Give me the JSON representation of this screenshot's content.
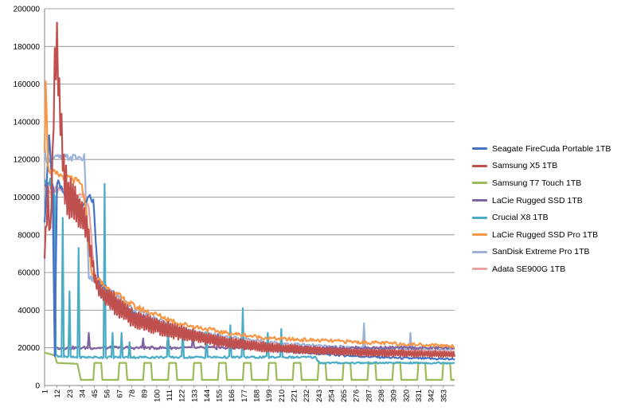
{
  "chart_data": {
    "type": "line",
    "title": "",
    "xlabel": "",
    "ylabel": "",
    "ylim": [
      0,
      200000
    ],
    "y_ticks": [
      "0",
      "20000",
      "40000",
      "60000",
      "80000",
      "100000",
      "120000",
      "140000",
      "160000",
      "180000",
      "200000"
    ],
    "x_range": [
      1,
      363
    ],
    "x_ticks": [
      "1",
      "12",
      "23",
      "34",
      "45",
      "56",
      "67",
      "78",
      "89",
      "100",
      "111",
      "122",
      "133",
      "144",
      "155",
      "166",
      "177",
      "188",
      "199",
      "210",
      "221",
      "232",
      "243",
      "254",
      "265",
      "276",
      "287",
      "298",
      "309",
      "320",
      "331",
      "342",
      "353"
    ],
    "grid": "horizontal",
    "legend_position": "right",
    "series": [
      {
        "name": "Seagate FireCuda Portable 1TB",
        "color": "#4472C4",
        "x": [
          1,
          5,
          8,
          10,
          12,
          16,
          20,
          28,
          36,
          40,
          44,
          48,
          50,
          60,
          80,
          120,
          160,
          200,
          240,
          280,
          320,
          363
        ],
        "y": [
          85000,
          133000,
          105000,
          15000,
          108000,
          104000,
          100000,
          98000,
          95000,
          100000,
          98000,
          60000,
          55000,
          48000,
          38000,
          28000,
          22000,
          19000,
          17000,
          15500,
          14500,
          14000
        ]
      },
      {
        "name": "Samsung X5 1TB",
        "color": "#C0504D",
        "x": [
          1,
          4,
          6,
          8,
          10,
          12,
          14,
          16,
          18,
          22,
          28,
          34,
          38,
          42,
          46,
          50,
          60,
          80,
          120,
          160,
          200,
          240,
          280,
          320,
          363
        ],
        "y": [
          70000,
          100000,
          78000,
          120000,
          170000,
          180000,
          150000,
          135000,
          110000,
          100000,
          95000,
          90000,
          85000,
          70000,
          55000,
          50000,
          45000,
          35000,
          28000,
          23000,
          20000,
          18500,
          17500,
          17000,
          16500
        ],
        "oscillation": [
          6000,
          16000,
          12000,
          12000,
          30000,
          30000,
          28000,
          24000,
          25000,
          25000,
          22000,
          18000,
          14000,
          10000,
          8000,
          7000,
          12000,
          10000,
          8000,
          6000,
          5000,
          4000,
          4000,
          3500,
          3000
        ]
      },
      {
        "name": "Samsung T7 Touch 1TB",
        "color": "#9BBB59",
        "x": [
          1,
          10,
          12,
          30,
          33,
          363
        ],
        "y": [
          17500,
          16000,
          12000,
          11500,
          3000,
          3000
        ],
        "pattern": "square wave 3000 to 12000, period about 22"
      },
      {
        "name": "LaCie Rugged SSD 1TB",
        "color": "#8064A2",
        "x": [
          1,
          9,
          10,
          14,
          363
        ],
        "y": [
          107000,
          105000,
          20000,
          20000,
          20000
        ],
        "spikes": [
          [
            40,
            28000
          ],
          [
            88,
            25000
          ],
          [
            110,
            27000
          ],
          [
            132,
            26000
          ],
          [
            154,
            27000
          ],
          [
            198,
            24000
          ]
        ]
      },
      {
        "name": "Crucial X8 1TB",
        "color": "#4BACC6",
        "x": [
          1,
          6,
          10,
          11,
          20,
          28,
          36,
          60,
          100,
          140,
          180,
          220,
          240,
          244,
          300,
          363
        ],
        "y": [
          108000,
          108000,
          100000,
          16000,
          15000,
          15000,
          15000,
          15000,
          15000,
          15000,
          15000,
          15000,
          15000,
          12000,
          12000,
          12000
        ],
        "spikes": [
          [
            17,
            89000
          ],
          [
            23,
            50000
          ],
          [
            31,
            73000
          ],
          [
            54,
            107000
          ],
          [
            61,
            28000
          ],
          [
            69,
            28000
          ],
          [
            76,
            23000
          ],
          [
            110,
            28000
          ],
          [
            123,
            30000
          ],
          [
            144,
            28000
          ],
          [
            165,
            32000
          ],
          [
            176,
            41000
          ],
          [
            198,
            28000
          ],
          [
            210,
            30000
          ]
        ]
      },
      {
        "name": "LaCie Rugged SSD Pro 1TB",
        "color": "#F79646",
        "x": [
          1,
          2,
          4,
          6,
          8,
          12,
          18,
          24,
          30,
          34,
          38,
          42,
          45,
          50,
          60,
          80,
          120,
          160,
          200,
          240,
          280,
          320,
          363
        ],
        "y": [
          125000,
          163000,
          118000,
          112000,
          113000,
          112000,
          111000,
          110000,
          108000,
          106000,
          90000,
          62000,
          58000,
          55000,
          50000,
          42000,
          33000,
          28000,
          25000,
          24000,
          23000,
          22000,
          21000
        ]
      },
      {
        "name": "SanDisk Extreme Pro 1TB",
        "color": "#9BB2DA",
        "x": [
          1,
          3,
          12,
          30,
          36,
          38,
          40,
          44,
          50,
          60,
          80,
          120,
          160,
          200,
          240,
          280,
          320,
          363
        ],
        "y": [
          126000,
          120000,
          121000,
          121000,
          121000,
          90000,
          58000,
          56000,
          54000,
          50000,
          40000,
          30000,
          26000,
          23000,
          21000,
          20000,
          19500,
          19000
        ],
        "spikes": [
          [
            283,
            33000
          ],
          [
            324,
            28000
          ]
        ]
      },
      {
        "name": "Adata SE900G 1TB",
        "color": "#E6A3A1",
        "x": [
          1,
          3,
          6,
          10,
          20,
          30,
          36,
          40,
          45,
          50,
          60,
          80,
          120,
          160,
          200,
          240,
          280,
          320,
          363
        ],
        "y": [
          106000,
          105000,
          102000,
          104000,
          103000,
          102000,
          101000,
          95000,
          60000,
          55000,
          48000,
          38000,
          29000,
          25000,
          22000,
          20000,
          19000,
          18500,
          18000
        ]
      }
    ]
  }
}
